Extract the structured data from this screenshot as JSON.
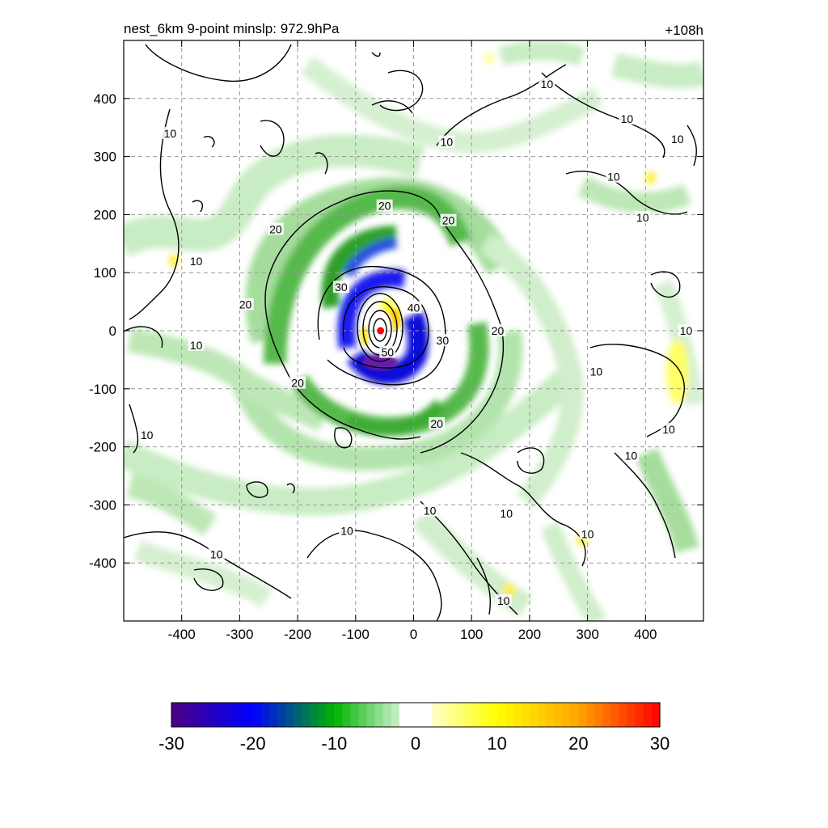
{
  "chart_data": {
    "type": "heatmap",
    "title_left": "nest_6km  9-point minslp: 972.9hPa",
    "title_right": "+108h",
    "xlabel": "",
    "ylabel": "",
    "xlim": [
      -500,
      500
    ],
    "ylim": [
      -500,
      500
    ],
    "x_ticks": [
      -400,
      -300,
      -200,
      -100,
      0,
      100,
      200,
      300,
      400
    ],
    "y_ticks": [
      400,
      300,
      200,
      100,
      0,
      -100,
      -200,
      -300,
      -400
    ],
    "grid": true,
    "center_marker": {
      "x": -57,
      "y": 0,
      "color": "#ff0000"
    },
    "colorbar": {
      "ticks": [
        "-30",
        "-20",
        "-10",
        "0",
        "10",
        "20",
        "30"
      ],
      "range": [
        -30,
        30
      ],
      "stops": [
        "#4b0082",
        "#0000ff",
        "#00b400",
        "#ffffff",
        "#ffff00",
        "#ffa500",
        "#ff0000"
      ]
    },
    "contour_labels": [
      {
        "text": "10",
        "x": -420,
        "y": 340
      },
      {
        "text": "10",
        "x": 230,
        "y": 425
      },
      {
        "text": "10",
        "x": 57,
        "y": 325
      },
      {
        "text": "10",
        "x": 368,
        "y": 365
      },
      {
        "text": "10",
        "x": 455,
        "y": 330
      },
      {
        "text": "10",
        "x": 345,
        "y": 265
      },
      {
        "text": "10",
        "x": 395,
        "y": 195
      },
      {
        "text": "10",
        "x": -375,
        "y": 120
      },
      {
        "text": "10",
        "x": -375,
        "y": -25
      },
      {
        "text": "10",
        "x": 315,
        "y": -70
      },
      {
        "text": "10",
        "x": 470,
        "y": 0
      },
      {
        "text": "10",
        "x": -460,
        "y": -180
      },
      {
        "text": "10",
        "x": 375,
        "y": -215
      },
      {
        "text": "10",
        "x": 440,
        "y": -170
      },
      {
        "text": "10",
        "x": 28,
        "y": -310
      },
      {
        "text": "10",
        "x": 160,
        "y": -315
      },
      {
        "text": "10",
        "x": 300,
        "y": -350
      },
      {
        "text": "10",
        "x": -115,
        "y": -345
      },
      {
        "text": "10",
        "x": -340,
        "y": -385
      },
      {
        "text": "10",
        "x": 155,
        "y": -465
      },
      {
        "text": "20",
        "x": -50,
        "y": 215
      },
      {
        "text": "20",
        "x": 60,
        "y": 190
      },
      {
        "text": "20",
        "x": -238,
        "y": 175
      },
      {
        "text": "20",
        "x": -290,
        "y": 45
      },
      {
        "text": "20",
        "x": 145,
        "y": 0
      },
      {
        "text": "20",
        "x": -200,
        "y": -90
      },
      {
        "text": "20",
        "x": 40,
        "y": -160
      },
      {
        "text": "30",
        "x": -125,
        "y": 75
      },
      {
        "text": "30",
        "x": 50,
        "y": -17
      },
      {
        "text": "40",
        "x": 0,
        "y": 40
      },
      {
        "text": "50",
        "x": -45,
        "y": -37
      }
    ]
  }
}
